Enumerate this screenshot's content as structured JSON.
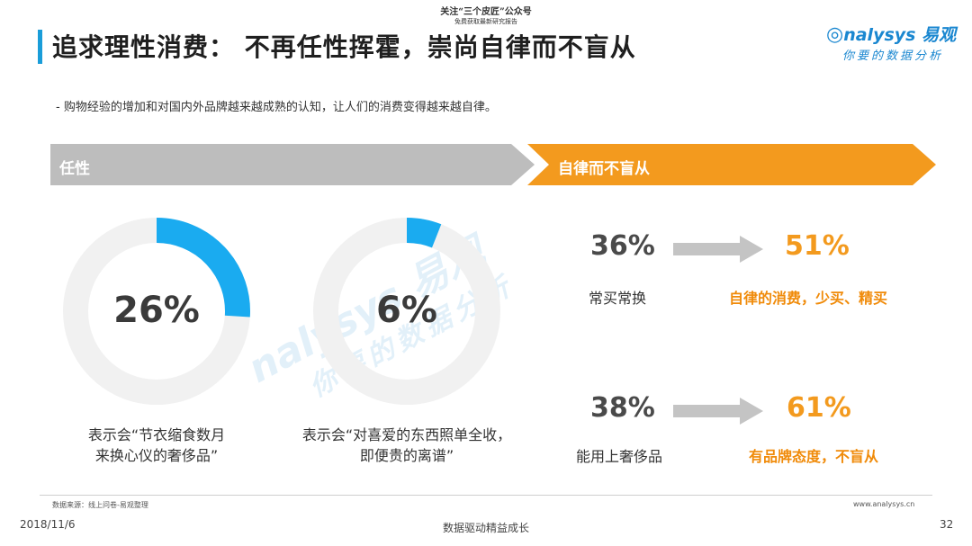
{
  "header": {
    "promo_line1": "关注“三个皮匠”公众号",
    "promo_line2": "免费获取最新研究报告",
    "title": "追求理性消费： 不再任性挥霍，崇尚自律而不盲从",
    "logo": "nalysys 易观",
    "logo_sub": "你要的数据分析"
  },
  "bullet": "-  购物经验的增加和对国内外品牌越来越成熟的认知，让人们的消费变得越来越自律。",
  "banners": {
    "left_label": "任性",
    "right_label": "自律而不盲从"
  },
  "donuts": [
    {
      "value": 26,
      "label": "26%",
      "caption_line1": "表示会“节衣缩食数月",
      "caption_line2": "来换心仪的奢侈品”",
      "color": "#1aabf0"
    },
    {
      "value": 6,
      "label": "6%",
      "caption_line1": "表示会“对喜爱的东西照单全收，",
      "caption_line2": "即便贵的离谱”",
      "color": "#1aabf0"
    }
  ],
  "comparisons": [
    {
      "before": "36%",
      "before_label": "常买常换",
      "after": "51%",
      "after_label": "自律的消费，少买、精买"
    },
    {
      "before": "38%",
      "before_label": "能用上奢侈品",
      "after": "61%",
      "after_label": "有品牌态度，不盲从"
    }
  ],
  "watermark": {
    "text1": "nalysys 易观",
    "text2": "你要的数据分析"
  },
  "footer": {
    "source": "数据来源：线上问卷-易观整理",
    "website": "www.analysys.cn",
    "date": "2018/11/6",
    "center": "数据驱动精益成长",
    "page": "32"
  },
  "colors": {
    "accent_blue": "#1a9dd9",
    "orange": "#f39a1e",
    "gray_banner": "#bdbdbd",
    "donut_track": "#f1f1f1"
  }
}
